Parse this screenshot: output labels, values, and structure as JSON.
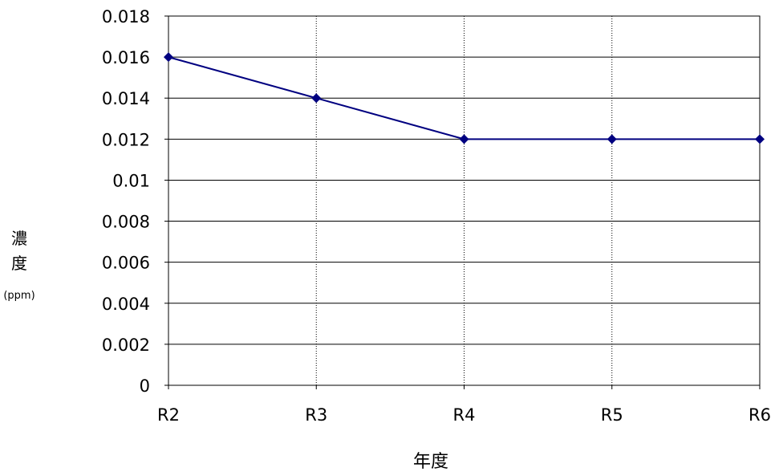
{
  "chart_data": {
    "type": "line",
    "categories": [
      "R2",
      "R3",
      "R4",
      "R5",
      "R6"
    ],
    "series": [
      {
        "values": [
          0.016,
          0.014,
          0.012,
          0.012,
          0.012
        ]
      }
    ],
    "xlabel": "年度",
    "ylabel_chars": [
      "濃",
      "度"
    ],
    "ylabel_unit": "(ppm)",
    "ylim": [
      0,
      0.018
    ],
    "yticks": [
      0,
      0.002,
      0.004,
      0.006,
      0.008,
      0.01,
      0.012,
      0.014,
      0.016,
      0.018
    ],
    "ytick_labels": [
      "0",
      "0.002",
      "0.004",
      "0.006",
      "0.008",
      "0.01",
      "0.012",
      "0.014",
      "0.016",
      "0.018"
    ],
    "grid": {
      "horizontal": "solid",
      "vertical": "dotted"
    },
    "line_color": "#000080",
    "marker": "diamond",
    "legend": "none"
  }
}
